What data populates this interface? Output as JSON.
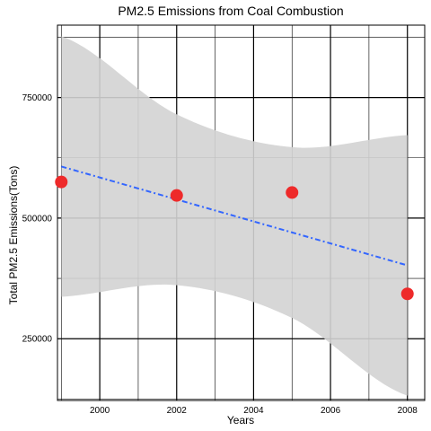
{
  "chart_data": {
    "type": "scatter",
    "title": "PM2.5 Emissions from Coal Combustion",
    "xlabel": "Years",
    "ylabel": "Total PM2.5 Emissions(Tons)",
    "xlim": [
      1998.9,
      2008.45
    ],
    "ylim": [
      122000,
      900000
    ],
    "x_major_ticks": [
      2000,
      2002,
      2004,
      2006,
      2008
    ],
    "x_tick_labels": [
      "2000",
      "2002",
      "2004",
      "2006",
      "2008"
    ],
    "x_minor_lines": [
      1999,
      2001,
      2003,
      2005,
      2007
    ],
    "y_major_ticks": [
      250000,
      500000,
      750000
    ],
    "y_tick_labels": [
      "250000",
      "500000",
      "750000"
    ],
    "y_minor_lines": [
      125000,
      375000,
      625000,
      875000
    ],
    "grid": true,
    "points": [
      {
        "x": 1999,
        "y": 575000
      },
      {
        "x": 2002,
        "y": 547000
      },
      {
        "x": 2005,
        "y": 553000
      },
      {
        "x": 2008,
        "y": 343000
      }
    ],
    "trend": {
      "type": "linear",
      "x": [
        1999,
        2002,
        2005,
        2008
      ],
      "fit": [
        607000,
        538000,
        470000,
        402000
      ],
      "lower": [
        337000,
        361000,
        293000,
        132000
      ],
      "upper": [
        877000,
        715000,
        647000,
        672000
      ]
    },
    "colors": {
      "points": "#ee2a2a",
      "trend": "#3366ff",
      "ribbon": "#d3d3d3",
      "grid": "#000000",
      "background": "#ffffff"
    }
  }
}
